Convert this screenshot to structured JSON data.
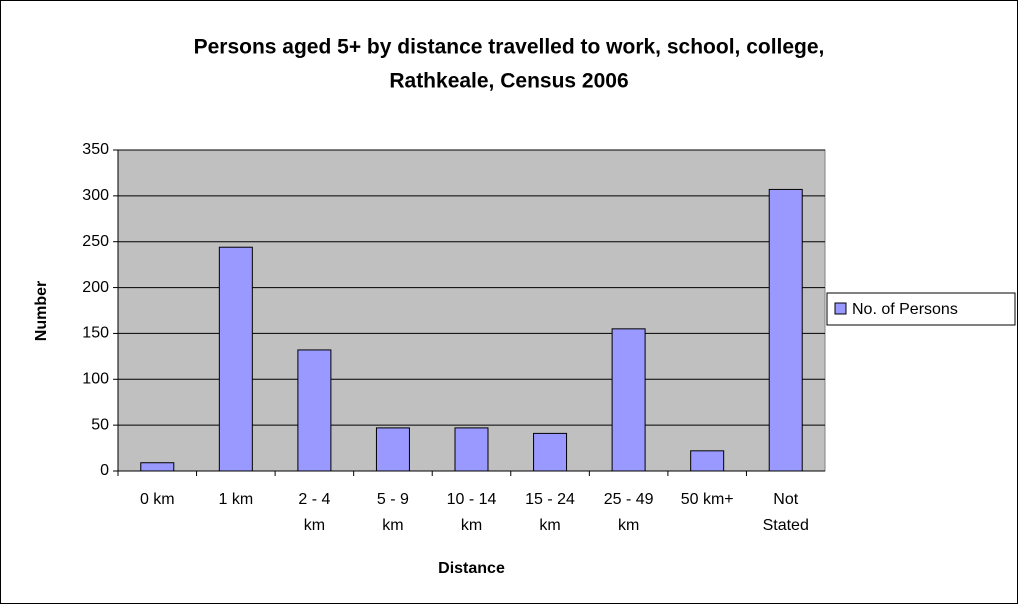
{
  "chart_data": {
    "type": "bar",
    "title": [
      "Persons aged 5+ by distance travelled to work, school, college,",
      "Rathkeale, Census 2006"
    ],
    "x_label": "Distance",
    "y_label": "Number",
    "categories": [
      [
        "0 km"
      ],
      [
        "1 km"
      ],
      [
        "2 - 4",
        "km"
      ],
      [
        "5 - 9",
        "km"
      ],
      [
        "10 - 14",
        "km"
      ],
      [
        "15 - 24",
        "km"
      ],
      [
        "25 - 49",
        "km"
      ],
      [
        "50 km+"
      ],
      [
        "Not",
        "Stated"
      ]
    ],
    "series": [
      {
        "name": "No. of Persons",
        "color": "#9999ff",
        "values": [
          9,
          244,
          132,
          47,
          47,
          41,
          155,
          22,
          307
        ]
      }
    ],
    "ylim": [
      0,
      350
    ],
    "yticks": [
      0,
      50,
      100,
      150,
      200,
      250,
      300,
      350
    ],
    "grid": true,
    "legend": "right"
  }
}
